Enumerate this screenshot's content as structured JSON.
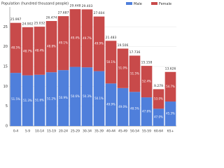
{
  "chart_data": {
    "type": "stacked_bar",
    "y_label": "Population (hundred thousand people)",
    "categories": [
      "0-4",
      "5-9",
      "10-14",
      "15-19",
      "20-24",
      "25-29",
      "30-34",
      "35-39",
      "40-44",
      "45-49",
      "50-54",
      "55-59",
      "60-64",
      "65+"
    ],
    "series": [
      {
        "name": "Male",
        "color": "#4f7fdb",
        "values": [
          13.39,
          12.77,
          12.92,
          13.55,
          14.09,
          14.9,
          14.79,
          13.83,
          10.72,
          9.56,
          8.6,
          7.22,
          4.36,
          6.17
        ],
        "shares": [
          "51.5%",
          "51.3%",
          "51.6%",
          "51.2%",
          "50.9%",
          "50.6%",
          "50.3%",
          "50.1%",
          "49.9%",
          "49.0%",
          "48.5%",
          "47.6%",
          "47.0%",
          "45.3%"
        ]
      },
      {
        "name": "Female",
        "color": "#c84a4a",
        "values": [
          12.61,
          12.13,
          12.11,
          12.92,
          13.6,
          14.55,
          14.61,
          13.77,
          10.76,
          9.95,
          9.14,
          7.94,
          4.92,
          7.46
        ],
        "shares": [
          "48.5%",
          "48.7%",
          "48.4%",
          "48.8%",
          "49.1%",
          "49.4%",
          "49.7%",
          "49.9%",
          "50.1%",
          "51.0%",
          "51.5%",
          "52.4%",
          "53.0%",
          "54.7%"
        ]
      }
    ],
    "totals": [
      25.997,
      24.902,
      25.032,
      26.474,
      27.687,
      29.448,
      29.403,
      27.604,
      21.483,
      19.506,
      17.736,
      15.158,
      9.279,
      13.626
    ],
    "ylim": [
      0,
      30
    ],
    "yticks": [
      0,
      5,
      10,
      15,
      20,
      25
    ],
    "grid": true
  }
}
